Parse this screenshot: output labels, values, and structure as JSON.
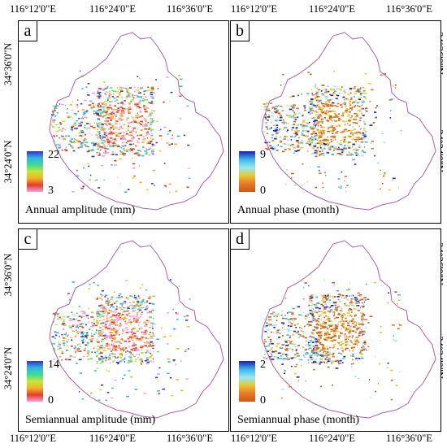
{
  "top_longitudes": [
    "116°12'0\"E",
    "116°24'0\"E",
    "116°36'0\"E"
  ],
  "bottom_longitudes": [
    "116°12'0\"E",
    "116°24'0\"E",
    "116°36'0\"E"
  ],
  "latitudes": [
    "34°36'0\"N",
    "34°24'0\"N"
  ],
  "panels": [
    {
      "letter": "a",
      "caption": "Annual amplitude (mm)",
      "legend_max": "22",
      "legend_min": "3",
      "palette": "rainbow"
    },
    {
      "letter": "b",
      "caption": "Annual phase (month)",
      "legend_max": "9",
      "legend_min": "0",
      "palette": "phase"
    },
    {
      "letter": "c",
      "caption": "Semiannual amplitude (mm)",
      "legend_max": "14",
      "legend_min": "0",
      "palette": "rainbow"
    },
    {
      "letter": "d",
      "caption": "Semiannual phase (month)",
      "legend_max": "2",
      "legend_min": "0",
      "palette": "phase"
    }
  ],
  "colors": {
    "boundary": "#b0609e",
    "rainbow": [
      "#3232c8",
      "#32b4e6",
      "#3cdc96",
      "#c8e632",
      "#f0b428",
      "#e63c28",
      "#f0a0e6"
    ],
    "phase": [
      "#1e1eb4",
      "#3cb4e6",
      "#96e6f0",
      "#e6c832",
      "#e67828",
      "#c85a14"
    ]
  }
}
